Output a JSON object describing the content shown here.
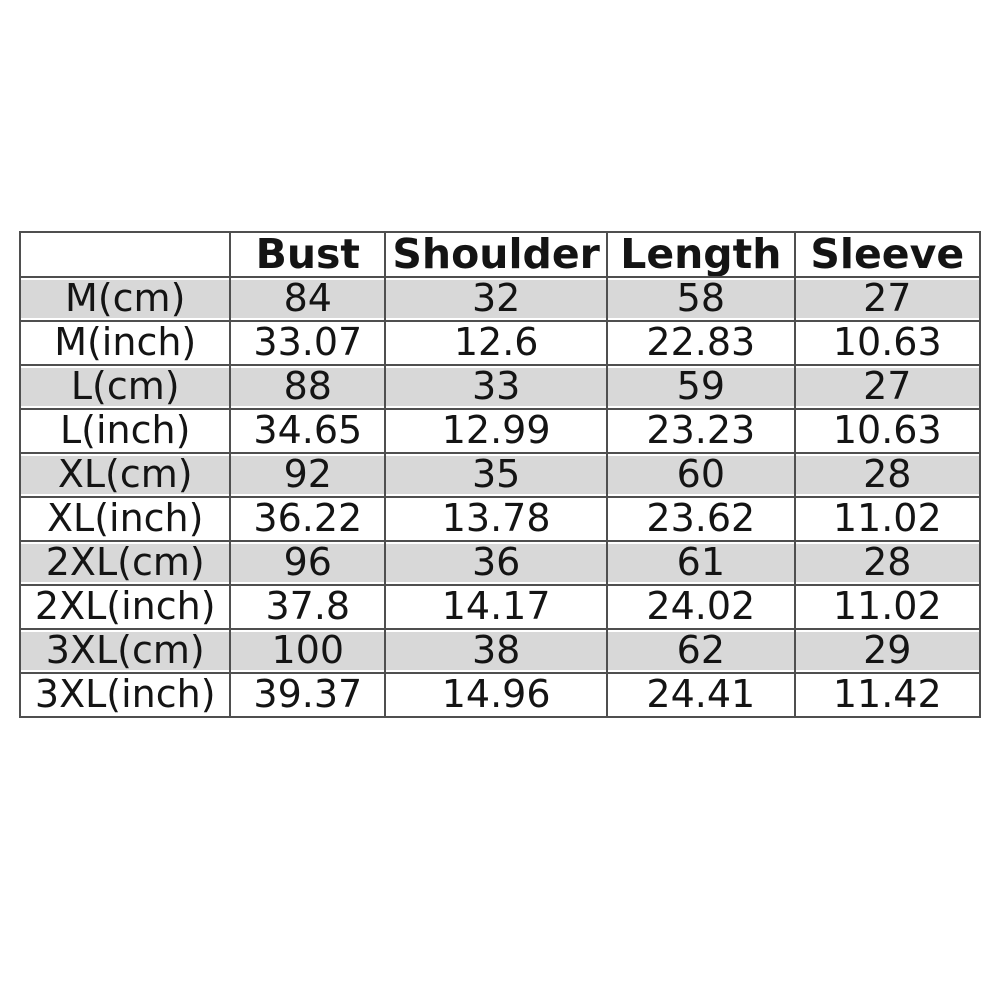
{
  "chart_data": {
    "type": "table",
    "title": "",
    "columns": [
      "",
      "Bust",
      "Shoulder",
      "Length",
      "Sleeve"
    ],
    "rows": [
      {
        "label": "M(cm)",
        "values": [
          "84",
          "32",
          "58",
          "27"
        ],
        "shaded": true
      },
      {
        "label": "M(inch)",
        "values": [
          "33.07",
          "12.6",
          "22.83",
          "10.63"
        ],
        "shaded": false
      },
      {
        "label": "L(cm)",
        "values": [
          "88",
          "33",
          "59",
          "27"
        ],
        "shaded": true
      },
      {
        "label": "L(inch)",
        "values": [
          "34.65",
          "12.99",
          "23.23",
          "10.63"
        ],
        "shaded": false
      },
      {
        "label": "XL(cm)",
        "values": [
          "92",
          "35",
          "60",
          "28"
        ],
        "shaded": true
      },
      {
        "label": "XL(inch)",
        "values": [
          "36.22",
          "13.78",
          "23.62",
          "11.02"
        ],
        "shaded": false
      },
      {
        "label": "2XL(cm)",
        "values": [
          "96",
          "36",
          "61",
          "28"
        ],
        "shaded": true
      },
      {
        "label": "2XL(inch)",
        "values": [
          "37.8",
          "14.17",
          "24.02",
          "11.02"
        ],
        "shaded": false
      },
      {
        "label": "3XL(cm)",
        "values": [
          "100",
          "38",
          "62",
          "29"
        ],
        "shaded": true
      },
      {
        "label": "3XL(inch)",
        "values": [
          "39.37",
          "14.96",
          "24.41",
          "11.42"
        ],
        "shaded": false
      }
    ],
    "layout": {
      "legend": "none",
      "grid": "full-borders",
      "shaded_row_pattern": "cm rows shaded, inch rows white"
    },
    "colors": {
      "shaded_row": "#d8d8d8",
      "plain_row": "#ffffff",
      "border": "#4f4f4f",
      "text": "#141414",
      "background": "#ffffff"
    }
  }
}
